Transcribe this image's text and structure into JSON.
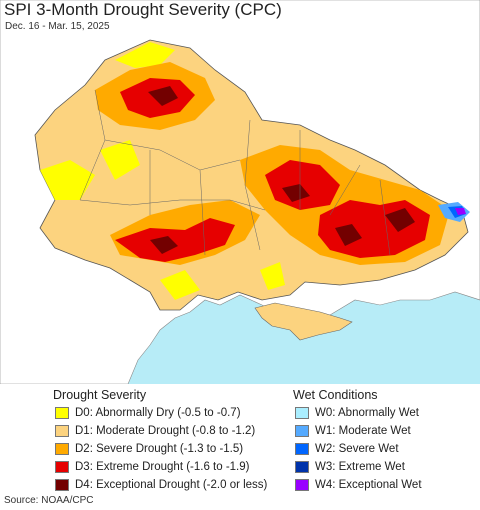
{
  "title": "SPI 3-Month Drought Severity (CPC)",
  "subtitle": "Dec. 16 - Mar. 15, 2025",
  "legend": {
    "drought_heading": "Drought Severity",
    "wet_heading": "Wet Conditions",
    "drought": [
      {
        "label": "D0: Abnormally Dry (-0.5 to -0.7)",
        "color": "#ffff00"
      },
      {
        "label": "D1: Moderate Drought (-0.8 to -1.2)",
        "color": "#fcd37f"
      },
      {
        "label": "D2: Severe Drought (-1.3 to -1.5)",
        "color": "#ffaa00"
      },
      {
        "label": "D3: Extreme Drought (-1.6 to -1.9)",
        "color": "#e60000"
      },
      {
        "label": "D4: Exceptional Drought (-2.0 or less)",
        "color": "#730000"
      }
    ],
    "wet": [
      {
        "label": "W0: Abnormally Wet",
        "color": "#aaeeff"
      },
      {
        "label": "W1: Moderate Wet",
        "color": "#55aaff"
      },
      {
        "label": "W2: Severe Wet",
        "color": "#0066ff"
      },
      {
        "label": "W3: Extreme Wet",
        "color": "#0033aa"
      },
      {
        "label": "W4: Exceptional Wet",
        "color": "#9900ff"
      }
    ]
  },
  "source": "Source: NOAA/CPC",
  "colors": {
    "sea": "#b7ecf7",
    "land": "#ffffff",
    "border": "#555555"
  }
}
